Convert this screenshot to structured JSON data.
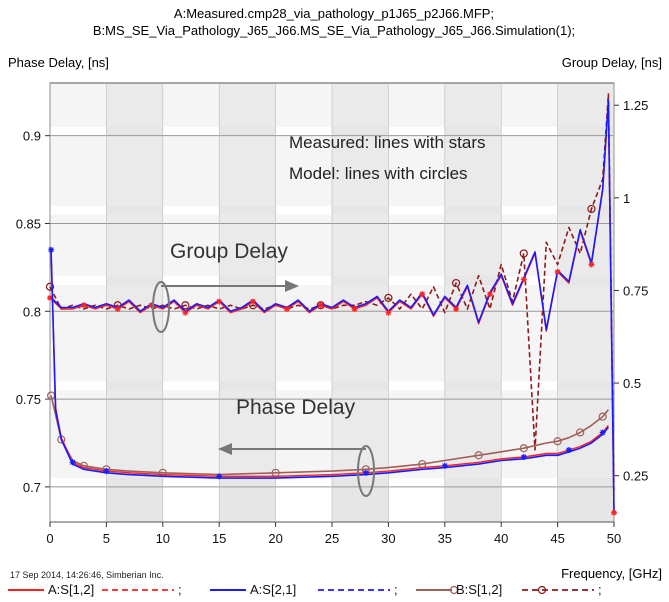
{
  "chart_data": {
    "type": "line",
    "title_lines": [
      "A:Measured.cmp28_via_pathology_p1J65_p2J66.MFP;",
      "B:MS_SE_Via_Pathology_J65_J66.MS_SE_Via_Pathology_J65_J66.Simulation(1);"
    ],
    "ylabel_left": "Phase Delay, [ns]",
    "ylabel_right": "Group Delay, [ns]",
    "xlabel": "Frequency, [GHz]",
    "xlim": [
      0,
      50
    ],
    "ylim_left": [
      0.68,
      0.93
    ],
    "ylim_right": [
      0.125,
      1.31
    ],
    "x_ticks": [
      "0",
      "5",
      "10",
      "15",
      "20",
      "25",
      "30",
      "35",
      "40",
      "45",
      "50"
    ],
    "y_left_ticks": [
      "0.7",
      "0.75",
      "0.8",
      "0.85",
      "0.9"
    ],
    "y_right_ticks": [
      "0.25",
      "0.5",
      "0.75",
      "1",
      "1.25"
    ],
    "annotations": {
      "measured_note": "Measured: lines with stars",
      "model_note": "Model: lines with circles",
      "group_delay": "Group Delay",
      "phase_delay": "Phase Delay"
    },
    "footer": "17 Sep 2014, 14:26:46, Simberian Inc.",
    "legend": [
      {
        "label": "A:S[1,2]",
        "color": "#ff2020",
        "style": "solid",
        "marker": "star"
      },
      {
        "label": ";",
        "color": "#ff2020",
        "style": "dashed",
        "marker": "star"
      },
      {
        "label": "A:S[2,1]",
        "color": "#1a1aff",
        "style": "solid",
        "marker": "star"
      },
      {
        "label": ";",
        "color": "#1a1aff",
        "style": "dashed",
        "marker": "star"
      },
      {
        "label": "B:S[1,2]",
        "color": "#a0605a",
        "style": "solid",
        "marker": "circle"
      },
      {
        "label": ";",
        "color": "#8b1a1a",
        "style": "dashed",
        "marker": "circle"
      }
    ],
    "phase_delay_series": {
      "x": [
        0.1,
        0.5,
        1,
        2,
        3,
        4,
        5,
        7,
        10,
        15,
        20,
        25,
        28,
        30,
        33,
        35,
        38,
        40,
        42,
        44,
        45,
        46,
        47,
        48,
        49,
        49.5
      ],
      "measured": [
        0.835,
        0.745,
        0.728,
        0.714,
        0.711,
        0.71,
        0.709,
        0.708,
        0.707,
        0.706,
        0.706,
        0.707,
        0.708,
        0.709,
        0.711,
        0.712,
        0.714,
        0.716,
        0.717,
        0.719,
        0.719,
        0.721,
        0.723,
        0.726,
        0.731,
        0.735
      ],
      "model": [
        0.752,
        0.741,
        0.727,
        0.715,
        0.712,
        0.711,
        0.71,
        0.709,
        0.708,
        0.707,
        0.708,
        0.709,
        0.71,
        0.711,
        0.713,
        0.715,
        0.718,
        0.72,
        0.722,
        0.725,
        0.726,
        0.728,
        0.731,
        0.735,
        0.74,
        0.744
      ]
    },
    "group_delay_series": {
      "x": [
        0,
        1,
        2,
        3,
        4,
        5,
        6,
        7,
        8,
        9,
        10,
        11,
        12,
        13,
        14,
        15,
        16,
        17,
        18,
        19,
        20,
        21,
        22,
        23,
        24,
        25,
        26,
        27,
        28,
        29,
        30,
        31,
        32,
        33,
        34,
        35,
        36,
        37,
        38,
        39,
        40,
        41,
        42,
        43,
        44,
        45,
        46,
        47,
        48,
        49,
        49.5,
        50
      ],
      "measured": [
        0.73,
        0.7,
        0.7,
        0.71,
        0.7,
        0.71,
        0.7,
        0.72,
        0.69,
        0.71,
        0.7,
        0.72,
        0.69,
        0.71,
        0.7,
        0.72,
        0.69,
        0.7,
        0.72,
        0.69,
        0.71,
        0.7,
        0.72,
        0.69,
        0.71,
        0.7,
        0.72,
        0.7,
        0.71,
        0.73,
        0.69,
        0.72,
        0.7,
        0.74,
        0.68,
        0.73,
        0.7,
        0.76,
        0.66,
        0.74,
        0.79,
        0.71,
        0.78,
        0.85,
        0.64,
        0.8,
        0.77,
        0.91,
        0.82,
        1.02,
        1.26,
        0.15
      ],
      "model": [
        0.76,
        0.7,
        0.71,
        0.7,
        0.71,
        0.7,
        0.71,
        0.7,
        0.71,
        0.7,
        0.71,
        0.7,
        0.71,
        0.7,
        0.71,
        0.7,
        0.71,
        0.7,
        0.71,
        0.7,
        0.71,
        0.7,
        0.71,
        0.7,
        0.71,
        0.7,
        0.71,
        0.71,
        0.72,
        0.71,
        0.73,
        0.7,
        0.74,
        0.7,
        0.76,
        0.69,
        0.77,
        0.7,
        0.79,
        0.7,
        0.82,
        0.72,
        0.85,
        0.32,
        0.88,
        0.82,
        0.92,
        0.85,
        0.97,
        1.05,
        1.28,
        0.2
      ]
    }
  }
}
